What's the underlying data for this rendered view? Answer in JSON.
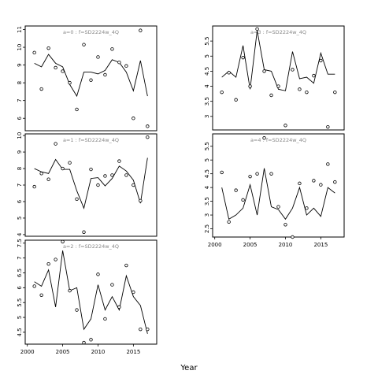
{
  "chart_data": {
    "type": "scatter",
    "xlabel": "Year",
    "x": [
      2001,
      2002,
      2003,
      2004,
      2005,
      2006,
      2007,
      2008,
      2009,
      2010,
      2011,
      2012,
      2013,
      2014,
      2015,
      2016,
      2017
    ],
    "panels": [
      {
        "title": "a=0  :  f=SD2224w_4Q",
        "xlim": [
          1999.7,
          2018.3
        ],
        "ylim": [
          5.3,
          11.2
        ],
        "yticks": [
          6,
          7,
          8,
          9,
          10,
          11
        ],
        "show_xticks": false,
        "points": [
          9.7,
          7.65,
          9.95,
          8.85,
          8.65,
          8.0,
          6.5,
          10.15,
          8.15,
          9.45,
          8.45,
          9.9,
          9.15,
          8.95,
          6.0,
          10.95,
          5.55
        ],
        "line": [
          9.1,
          8.9,
          9.6,
          9.1,
          8.9,
          7.9,
          7.25,
          8.6,
          8.6,
          8.5,
          8.7,
          9.3,
          9.15,
          8.6,
          7.55,
          9.25,
          7.25
        ]
      },
      {
        "title": "a=1  :  f=SD2224w_4Q",
        "xlim": [
          1999.7,
          2018.3
        ],
        "ylim": [
          3.9,
          10.1
        ],
        "yticks": [
          4,
          5,
          6,
          7,
          8,
          9,
          10
        ],
        "show_xticks": false,
        "points": [
          6.9,
          7.7,
          7.35,
          9.5,
          8.0,
          8.35,
          6.15,
          4.15,
          7.95,
          7.0,
          7.55,
          7.6,
          8.45,
          7.6,
          7.0,
          6.05,
          9.9
        ],
        "line": [
          8.0,
          7.8,
          7.7,
          8.55,
          7.95,
          7.95,
          6.65,
          5.6,
          7.4,
          7.45,
          6.95,
          7.4,
          8.15,
          7.85,
          7.3,
          5.9,
          8.65
        ]
      },
      {
        "title": "a=2  :  f=SD2224w_4Q",
        "xlim": [
          1999.7,
          2018.3
        ],
        "ylim": [
          4.1,
          7.6
        ],
        "yticks": [
          4.5,
          5.0,
          5.5,
          6.0,
          6.5,
          7.0,
          7.5
        ],
        "show_xticks": true,
        "xticks": [
          2000,
          2005,
          2010,
          2015
        ],
        "points": [
          6.05,
          5.75,
          6.8,
          6.95,
          7.55,
          5.9,
          5.25,
          4.15,
          4.25,
          6.45,
          4.95,
          6.1,
          5.35,
          6.75,
          5.85,
          4.6,
          4.6
        ],
        "line": [
          6.2,
          6.05,
          6.6,
          5.35,
          7.25,
          5.9,
          6.0,
          4.6,
          4.95,
          6.1,
          5.25,
          5.7,
          5.25,
          6.4,
          5.7,
          5.4,
          4.45
        ]
      },
      {
        "title": "a=3  :  f=SD2224w_4Q",
        "xlim": [
          1999.7,
          2018.3
        ],
        "ylim": [
          2.55,
          6.0
        ],
        "yticks": [
          3.0,
          3.5,
          4.0,
          4.5,
          5.0,
          5.5
        ],
        "show_xticks": false,
        "points": [
          3.8,
          4.45,
          3.55,
          4.95,
          4.0,
          5.9,
          4.5,
          3.7,
          4.0,
          2.7,
          4.55,
          3.9,
          3.8,
          4.35,
          4.85,
          2.65,
          3.8
        ],
        "line": [
          4.3,
          4.5,
          4.3,
          5.35,
          3.9,
          5.85,
          4.55,
          4.5,
          3.9,
          3.85,
          5.15,
          4.25,
          4.3,
          4.1,
          5.1,
          4.4,
          4.4
        ]
      },
      {
        "title": "a=4  :  f=SD2224w_4Q",
        "xlim": [
          1999.7,
          2018.3
        ],
        "ylim": [
          2.2,
          5.95
        ],
        "yticks": [
          2.5,
          3.0,
          3.5,
          4.0,
          4.5,
          5.0,
          5.5
        ],
        "show_xticks": true,
        "xticks": [
          2000,
          2005,
          2010,
          2015
        ],
        "points": [
          4.55,
          2.75,
          3.9,
          3.55,
          4.4,
          4.5,
          5.8,
          4.5,
          3.3,
          2.65,
          2.2,
          4.15,
          3.25,
          4.25,
          4.1,
          4.85,
          4.2
        ],
        "line": [
          4.0,
          2.85,
          3.0,
          3.25,
          4.1,
          3.0,
          4.7,
          3.3,
          3.2,
          2.85,
          3.25,
          4.0,
          3.0,
          3.25,
          2.95,
          4.0,
          3.8
        ]
      }
    ]
  }
}
